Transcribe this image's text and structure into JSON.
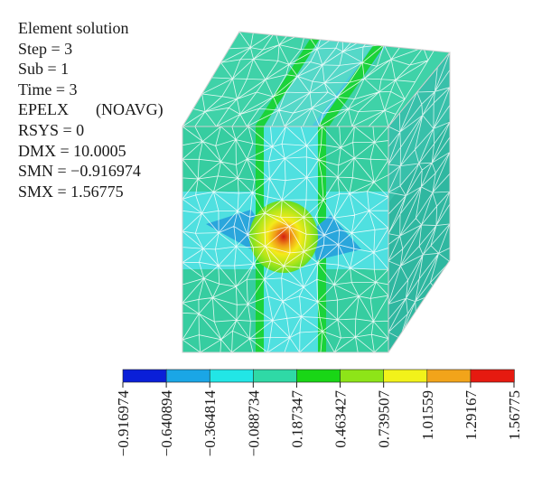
{
  "info": {
    "title": "Element solution",
    "step": "Step = 3",
    "sub": "Sub = 1",
    "time": "Time = 3",
    "quantity": "EPELX",
    "avg": "(NOAVG)",
    "rsys": "RSYS = 0",
    "dmx": "DMX = 10.0005",
    "smn": "SMN = −0.916974",
    "smx": "SMX = 1.56775"
  },
  "legend": {
    "colors": [
      "#0a1fd8",
      "#1aa6e6",
      "#22e6e6",
      "#2fd9a6",
      "#19d616",
      "#8ee418",
      "#f2f21a",
      "#f2a41a",
      "#e61a10"
    ],
    "ticks": [
      "−0.916974",
      "−0.640894",
      "−0.364814",
      "−0.088734",
      "0.187347",
      "0.463427",
      "0.739507",
      "1.01559",
      "1.29167",
      "1.56775"
    ]
  },
  "colors": {
    "mesh": "#ffffff",
    "face_base": "#36cda0",
    "face_cyan": "#4fe0e0",
    "face_blue": "#2aa6dc",
    "green_band": "#1bd33a",
    "yellow_core": "#f5ea1a",
    "red_core": "#e0421a"
  }
}
